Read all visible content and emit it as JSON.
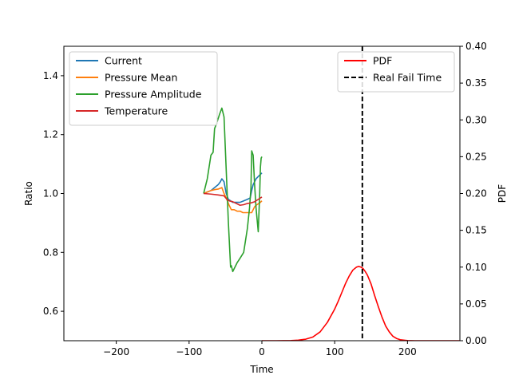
{
  "chart_data": {
    "type": "line",
    "xlabel": "Time",
    "ylabel_left": "Ratio",
    "ylabel_right": "PDF",
    "xlim": [
      -272,
      272
    ],
    "ylim_left": [
      0.5,
      1.5
    ],
    "ylim_right": [
      0,
      0.4
    ],
    "x_ticks": [
      -200,
      -100,
      0,
      100,
      200
    ],
    "x_tick_labels": [
      "−200",
      "−100",
      "0",
      "100",
      "200"
    ],
    "y_left_ticks": [
      0.6,
      0.8,
      1.0,
      1.2,
      1.4
    ],
    "y_left_tick_labels": [
      "0.6",
      "0.8",
      "1.0",
      "1.2",
      "1.4"
    ],
    "y_right_ticks": [
      0,
      0.05,
      0.1,
      0.15,
      0.2,
      0.25,
      0.3,
      0.35,
      0.4
    ],
    "y_right_tick_labels": [
      "0.00",
      "0.05",
      "0.10",
      "0.15",
      "0.20",
      "0.25",
      "0.30",
      "0.35",
      "0.40"
    ],
    "grid": false,
    "legend_left": {
      "placement": "upper-left",
      "entries": [
        "Current",
        "Pressure Mean",
        "Pressure Amplitude",
        "Temperature"
      ]
    },
    "legend_right": {
      "placement": "upper-right",
      "entries": [
        "PDF",
        "Real Fail Time"
      ]
    },
    "series": [
      {
        "name": "Current",
        "axis": "left",
        "color": "#1f77b4",
        "style": "solid",
        "x": [
          -80,
          -75,
          -70,
          -65,
          -60,
          -57,
          -55,
          -52,
          -49,
          -46,
          -43,
          -40,
          -35,
          -30,
          -25,
          -20,
          -16,
          -14,
          -12,
          -10,
          -8,
          -6,
          -4,
          -2,
          0
        ],
        "y": [
          1.0,
          1.005,
          1.01,
          1.02,
          1.03,
          1.04,
          1.05,
          1.04,
          1.0,
          0.98,
          0.975,
          0.97,
          0.97,
          0.97,
          0.975,
          0.98,
          0.985,
          1.01,
          1.03,
          1.04,
          1.05,
          1.055,
          1.06,
          1.065,
          1.07
        ]
      },
      {
        "name": "Pressure Mean",
        "axis": "left",
        "color": "#ff7f0e",
        "style": "solid",
        "x": [
          -80,
          -75,
          -70,
          -65,
          -60,
          -55,
          -52,
          -49,
          -45,
          -42,
          -38,
          -34,
          -30,
          -26,
          -22,
          -18,
          -14,
          -12,
          -10,
          -8,
          -5,
          -2,
          0
        ],
        "y": [
          1.0,
          1.005,
          1.01,
          1.013,
          1.015,
          1.02,
          1.0,
          0.985,
          0.96,
          0.945,
          0.945,
          0.94,
          0.94,
          0.935,
          0.935,
          0.935,
          0.935,
          0.945,
          0.955,
          0.96,
          0.965,
          0.97,
          0.975
        ]
      },
      {
        "name": "Pressure Amplitude",
        "axis": "left",
        "color": "#2ca02c",
        "style": "solid",
        "x": [
          -80,
          -75,
          -70,
          -67,
          -65,
          -62,
          -58,
          -55,
          -52,
          -49,
          -46,
          -43,
          -42,
          -40,
          -37,
          -34,
          -30,
          -25,
          -20,
          -17,
          -15,
          -14,
          -12,
          -10,
          -8,
          -5,
          -3,
          -2,
          -1,
          0
        ],
        "y": [
          1.0,
          1.05,
          1.13,
          1.14,
          1.22,
          1.24,
          1.27,
          1.29,
          1.26,
          1.08,
          0.9,
          0.75,
          0.755,
          0.735,
          0.75,
          0.765,
          0.78,
          0.8,
          0.88,
          0.95,
          1.02,
          1.145,
          1.13,
          1.03,
          0.95,
          0.87,
          1.0,
          1.09,
          1.12,
          1.125
        ]
      },
      {
        "name": "Temperature",
        "axis": "left",
        "color": "#d62728",
        "style": "solid",
        "x": [
          -80,
          -70,
          -60,
          -52,
          -48,
          -45,
          -40,
          -35,
          -30,
          -25,
          -20,
          -15,
          -10,
          -5,
          0
        ],
        "y": [
          1.0,
          0.998,
          0.995,
          0.992,
          0.98,
          0.975,
          0.972,
          0.966,
          0.96,
          0.962,
          0.966,
          0.968,
          0.972,
          0.98,
          0.988
        ]
      },
      {
        "name": "PDF",
        "axis": "right",
        "color": "#ff0000",
        "style": "solid",
        "x": [
          0,
          20,
          40,
          50,
          60,
          70,
          80,
          90,
          100,
          105,
          110,
          115,
          120,
          125,
          130,
          133,
          136,
          139,
          142,
          145,
          150,
          155,
          160,
          165,
          170,
          175,
          180,
          185,
          190,
          200,
          210,
          220,
          240,
          260,
          272
        ],
        "y": [
          0.0,
          0.0,
          0.0002,
          0.0008,
          0.002,
          0.005,
          0.012,
          0.025,
          0.043,
          0.054,
          0.066,
          0.078,
          0.088,
          0.096,
          0.1,
          0.101,
          0.1,
          0.098,
          0.094,
          0.089,
          0.077,
          0.061,
          0.046,
          0.032,
          0.02,
          0.012,
          0.006,
          0.003,
          0.0013,
          0.0002,
          0.0,
          0.0,
          0.0,
          0.0,
          0.0
        ]
      },
      {
        "name": "Real Fail Time",
        "axis": "vline",
        "color": "#000000",
        "style": "dashed",
        "x": 138
      }
    ]
  }
}
